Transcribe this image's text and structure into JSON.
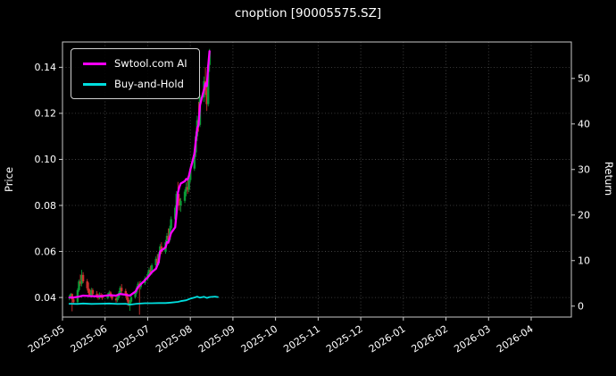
{
  "chart_data": {
    "type": "candlestick+line",
    "title": "cnoption [90005575.SZ]",
    "ylabel_left": "Price",
    "ylabel_right": "Return",
    "background": "#000000",
    "grid": true,
    "legend_position": "upper left",
    "x_ticklabels": [
      "2025-05",
      "2025-06",
      "2025-07",
      "2025-08",
      "2025-09",
      "2025-10",
      "2025-11",
      "2025-12",
      "2026-01",
      "2026-02",
      "2026-03",
      "2026-04"
    ],
    "y_ticks_left": [
      "0.04",
      "0.06",
      "0.08",
      "0.10",
      "0.12",
      "0.14"
    ],
    "y_ticks_right": [
      "0",
      "10",
      "20",
      "30",
      "40",
      "50"
    ],
    "ylim_left": [
      0.0315,
      0.151
    ],
    "ylim_right": [
      -2.4,
      58
    ],
    "candle_colors": {
      "up": "#0a9b36",
      "down": "#cf3030"
    },
    "candles": [
      [
        "2025-05-06",
        0.04,
        0.0412,
        0.0388,
        0.0402
      ],
      [
        "2025-05-07",
        0.0402,
        0.042,
        0.0396,
        0.0415
      ],
      [
        "2025-05-08",
        0.0415,
        0.0418,
        0.034,
        0.0392
      ],
      [
        "2025-05-09",
        0.0392,
        0.04,
        0.037,
        0.038
      ],
      [
        "2025-05-12",
        0.038,
        0.044,
        0.0375,
        0.0432
      ],
      [
        "2025-05-13",
        0.0432,
        0.0478,
        0.0425,
        0.047
      ],
      [
        "2025-05-14",
        0.047,
        0.05,
        0.045,
        0.046
      ],
      [
        "2025-05-15",
        0.046,
        0.052,
        0.0448,
        0.0498
      ],
      [
        "2025-05-16",
        0.0498,
        0.051,
        0.0462,
        0.047
      ],
      [
        "2025-05-19",
        0.047,
        0.048,
        0.043,
        0.044
      ],
      [
        "2025-05-20",
        0.044,
        0.0465,
        0.0412,
        0.042
      ],
      [
        "2025-05-21",
        0.042,
        0.0435,
        0.0402,
        0.041
      ],
      [
        "2025-05-22",
        0.041,
        0.0442,
        0.04,
        0.0432
      ],
      [
        "2025-05-23",
        0.0432,
        0.044,
        0.0408,
        0.0415
      ],
      [
        "2025-05-26",
        0.0415,
        0.0428,
        0.0398,
        0.0405
      ],
      [
        "2025-05-27",
        0.0405,
        0.0418,
        0.039,
        0.0398
      ],
      [
        "2025-05-28",
        0.0398,
        0.0422,
        0.0392,
        0.0412
      ],
      [
        "2025-05-29",
        0.0412,
        0.042,
        0.0398,
        0.0408
      ],
      [
        "2025-05-30",
        0.0408,
        0.0415,
        0.039,
        0.0398
      ],
      [
        "2025-06-03",
        0.0398,
        0.042,
        0.0392,
        0.0412
      ],
      [
        "2025-06-04",
        0.0412,
        0.043,
        0.0405,
        0.0422
      ],
      [
        "2025-06-05",
        0.0422,
        0.0428,
        0.04,
        0.0408
      ],
      [
        "2025-06-06",
        0.0408,
        0.0415,
        0.0388,
        0.0395
      ],
      [
        "2025-06-09",
        0.0395,
        0.0405,
        0.0378,
        0.0388
      ],
      [
        "2025-06-10",
        0.0388,
        0.0408,
        0.038,
        0.04
      ],
      [
        "2025-06-11",
        0.04,
        0.0428,
        0.0395,
        0.042
      ],
      [
        "2025-06-12",
        0.042,
        0.045,
        0.0412,
        0.0442
      ],
      [
        "2025-06-13",
        0.0442,
        0.0458,
        0.042,
        0.0428
      ],
      [
        "2025-06-16",
        0.0428,
        0.0438,
        0.0402,
        0.041
      ],
      [
        "2025-06-17",
        0.041,
        0.042,
        0.0382,
        0.039
      ],
      [
        "2025-06-18",
        0.039,
        0.04,
        0.0362,
        0.0372
      ],
      [
        "2025-06-19",
        0.0372,
        0.039,
        0.0342,
        0.0382
      ],
      [
        "2025-06-20",
        0.0382,
        0.0412,
        0.0375,
        0.0402
      ],
      [
        "2025-06-23",
        0.0402,
        0.0432,
        0.0395,
        0.0422
      ],
      [
        "2025-06-24",
        0.0422,
        0.045,
        0.0415,
        0.0442
      ],
      [
        "2025-06-25",
        0.0442,
        0.0468,
        0.0435,
        0.046
      ],
      [
        "2025-06-26",
        0.046,
        0.047,
        0.0325,
        0.0445
      ],
      [
        "2025-06-27",
        0.0445,
        0.0472,
        0.0435,
        0.0462
      ],
      [
        "2025-06-30",
        0.0462,
        0.0492,
        0.0455,
        0.0482
      ],
      [
        "2025-07-01",
        0.0482,
        0.0512,
        0.0472,
        0.0502
      ],
      [
        "2025-07-02",
        0.0502,
        0.053,
        0.0492,
        0.052
      ],
      [
        "2025-07-03",
        0.052,
        0.0538,
        0.0498,
        0.0508
      ],
      [
        "2025-07-04",
        0.0508,
        0.0548,
        0.05,
        0.054
      ],
      [
        "2025-07-07",
        0.054,
        0.0578,
        0.053,
        0.0568
      ],
      [
        "2025-07-08",
        0.0568,
        0.0588,
        0.054,
        0.0548
      ],
      [
        "2025-07-09",
        0.0548,
        0.0598,
        0.054,
        0.059
      ],
      [
        "2025-07-10",
        0.059,
        0.0632,
        0.058,
        0.0622
      ],
      [
        "2025-07-11",
        0.0622,
        0.064,
        0.0588,
        0.0598
      ],
      [
        "2025-07-14",
        0.0598,
        0.065,
        0.059,
        0.064
      ],
      [
        "2025-07-15",
        0.064,
        0.068,
        0.063,
        0.0668
      ],
      [
        "2025-07-16",
        0.0668,
        0.07,
        0.064,
        0.065
      ],
      [
        "2025-07-17",
        0.065,
        0.0712,
        0.0642,
        0.07
      ],
      [
        "2025-07-18",
        0.07,
        0.0752,
        0.069,
        0.074
      ],
      [
        "2025-07-21",
        0.074,
        0.08,
        0.073,
        0.079
      ],
      [
        "2025-07-22",
        0.079,
        0.0862,
        0.078,
        0.085
      ],
      [
        "2025-07-23",
        0.085,
        0.0902,
        0.0818,
        0.083
      ],
      [
        "2025-07-24",
        0.083,
        0.085,
        0.0778,
        0.08
      ],
      [
        "2025-07-25",
        0.08,
        0.0832,
        0.0772,
        0.082
      ],
      [
        "2025-07-28",
        0.082,
        0.087,
        0.081,
        0.086
      ],
      [
        "2025-07-29",
        0.086,
        0.09,
        0.084,
        0.088
      ],
      [
        "2025-07-30",
        0.088,
        0.091,
        0.085,
        0.0868
      ],
      [
        "2025-07-31",
        0.0868,
        0.092,
        0.0858,
        0.091
      ],
      [
        "2025-08-01",
        0.091,
        0.097,
        0.09,
        0.096
      ],
      [
        "2025-08-04",
        0.096,
        0.104,
        0.095,
        0.103
      ],
      [
        "2025-08-05",
        0.103,
        0.112,
        0.101,
        0.11
      ],
      [
        "2025-08-06",
        0.11,
        0.119,
        0.108,
        0.117
      ],
      [
        "2025-08-07",
        0.117,
        0.125,
        0.112,
        0.115
      ],
      [
        "2025-08-08",
        0.115,
        0.128,
        0.114,
        0.127
      ],
      [
        "2025-08-11",
        0.127,
        0.136,
        0.125,
        0.134
      ],
      [
        "2025-08-12",
        0.134,
        0.14,
        0.128,
        0.13
      ],
      [
        "2025-08-13",
        0.13,
        0.135,
        0.121,
        0.124
      ],
      [
        "2025-08-14",
        0.124,
        0.142,
        0.123,
        0.141
      ],
      [
        "2025-08-15",
        0.141,
        0.148,
        0.138,
        0.147
      ]
    ],
    "series": [
      {
        "name": "Swtool.com AI",
        "color": "#ff00ff",
        "points": [
          [
            "2025-05-06",
            0.04
          ],
          [
            "2025-05-09",
            0.04
          ],
          [
            "2025-05-13",
            0.0404
          ],
          [
            "2025-05-16",
            0.0408
          ],
          [
            "2025-05-21",
            0.0406
          ],
          [
            "2025-05-27",
            0.0405
          ],
          [
            "2025-05-30",
            0.0406
          ],
          [
            "2025-06-04",
            0.041
          ],
          [
            "2025-06-09",
            0.0408
          ],
          [
            "2025-06-12",
            0.0415
          ],
          [
            "2025-06-16",
            0.0412
          ],
          [
            "2025-06-19",
            0.0408
          ],
          [
            "2025-06-23",
            0.0425
          ],
          [
            "2025-06-25",
            0.0445
          ],
          [
            "2025-06-27",
            0.0458
          ],
          [
            "2025-06-30",
            0.0475
          ],
          [
            "2025-07-02",
            0.0495
          ],
          [
            "2025-07-04",
            0.051
          ],
          [
            "2025-07-07",
            0.0525
          ],
          [
            "2025-07-09",
            0.0555
          ],
          [
            "2025-07-10",
            0.06
          ],
          [
            "2025-07-11",
            0.0605
          ],
          [
            "2025-07-14",
            0.0618
          ],
          [
            "2025-07-15",
            0.064
          ],
          [
            "2025-07-16",
            0.0638
          ],
          [
            "2025-07-17",
            0.066
          ],
          [
            "2025-07-18",
            0.068
          ],
          [
            "2025-07-21",
            0.0705
          ],
          [
            "2025-07-22",
            0.0768
          ],
          [
            "2025-07-23",
            0.0855
          ],
          [
            "2025-07-24",
            0.088
          ],
          [
            "2025-07-25",
            0.0895
          ],
          [
            "2025-07-28",
            0.0905
          ],
          [
            "2025-07-29",
            0.0915
          ],
          [
            "2025-07-30",
            0.0912
          ],
          [
            "2025-07-31",
            0.0928
          ],
          [
            "2025-08-01",
            0.0955
          ],
          [
            "2025-08-04",
            0.1025
          ],
          [
            "2025-08-05",
            0.108
          ],
          [
            "2025-08-06",
            0.1135
          ],
          [
            "2025-08-07",
            0.115
          ],
          [
            "2025-08-08",
            0.1235
          ],
          [
            "2025-08-11",
            0.1305
          ],
          [
            "2025-08-12",
            0.133
          ],
          [
            "2025-08-13",
            0.1318
          ],
          [
            "2025-08-14",
            0.1405
          ],
          [
            "2025-08-15",
            0.147
          ]
        ]
      },
      {
        "name": "Buy-and-Hold",
        "color": "#00dede",
        "points": [
          [
            "2025-05-06",
            0.0373
          ],
          [
            "2025-05-12",
            0.0372
          ],
          [
            "2025-05-16",
            0.0374
          ],
          [
            "2025-05-22",
            0.0372
          ],
          [
            "2025-05-28",
            0.0373
          ],
          [
            "2025-06-04",
            0.0374
          ],
          [
            "2025-06-10",
            0.0372
          ],
          [
            "2025-06-16",
            0.0373
          ],
          [
            "2025-06-19",
            0.0369
          ],
          [
            "2025-06-24",
            0.0373
          ],
          [
            "2025-06-30",
            0.0375
          ],
          [
            "2025-07-04",
            0.0375
          ],
          [
            "2025-07-09",
            0.0376
          ],
          [
            "2025-07-14",
            0.0376
          ],
          [
            "2025-07-18",
            0.0378
          ],
          [
            "2025-07-23",
            0.0381
          ],
          [
            "2025-07-25",
            0.0384
          ],
          [
            "2025-07-29",
            0.0388
          ],
          [
            "2025-08-01",
            0.0395
          ],
          [
            "2025-08-04",
            0.04
          ],
          [
            "2025-08-06",
            0.0404
          ],
          [
            "2025-08-08",
            0.0399
          ],
          [
            "2025-08-11",
            0.0403
          ],
          [
            "2025-08-13",
            0.0398
          ],
          [
            "2025-08-15",
            0.0402
          ],
          [
            "2025-08-19",
            0.0404
          ],
          [
            "2025-08-21",
            0.0402
          ]
        ]
      }
    ]
  }
}
